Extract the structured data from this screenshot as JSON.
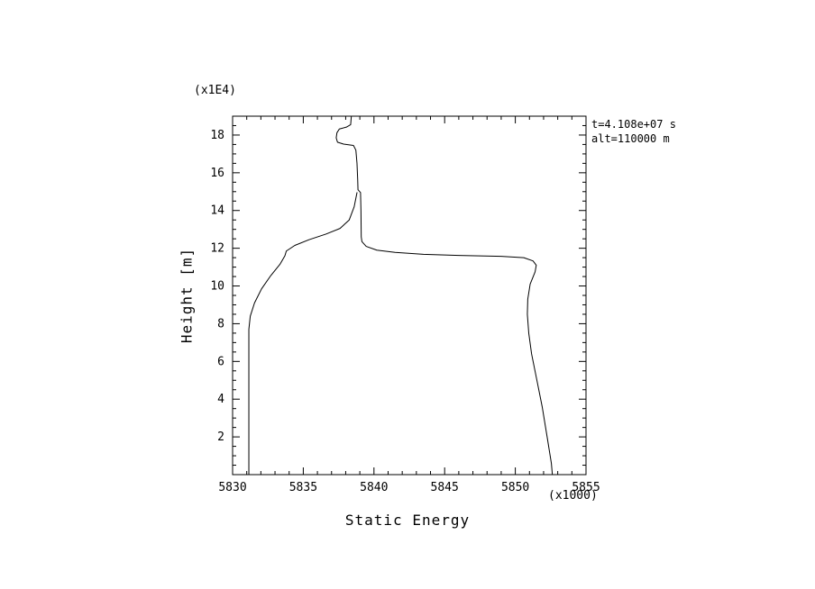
{
  "figure": {
    "bg": "#ffffff",
    "fg": "#000000"
  },
  "chart_data": {
    "type": "line",
    "title": "",
    "xlabel": "Static Energy",
    "ylabel": "Height [m]",
    "x_scale_note": "(x1000)",
    "y_scale_note": "(x1E4)",
    "xlim": [
      5830,
      5855
    ],
    "ylim": [
      0,
      19.0
    ],
    "x_major_ticks": [
      5830,
      5835,
      5840,
      5845,
      5850,
      5855
    ],
    "x_minor_step": 1,
    "y_major_ticks": [
      2,
      4,
      6,
      8,
      10,
      12,
      14,
      16,
      18
    ],
    "y_minor_step": 0.5,
    "grid": false,
    "legend": "none",
    "color": "#000000",
    "annotations": {
      "time": "t=4.108e+07 s",
      "alt": "alt=110000 m"
    },
    "series": [
      {
        "name": "static-energy-profile-main",
        "color": "#000000",
        "points": [
          [
            5838.4,
            19.0
          ],
          [
            5838.35,
            18.55
          ],
          [
            5838.05,
            18.42
          ],
          [
            5837.55,
            18.32
          ],
          [
            5837.38,
            18.12
          ],
          [
            5837.33,
            17.85
          ],
          [
            5837.42,
            17.62
          ],
          [
            5837.85,
            17.52
          ],
          [
            5838.55,
            17.45
          ],
          [
            5838.72,
            17.2
          ],
          [
            5838.8,
            16.5
          ],
          [
            5838.85,
            15.6
          ],
          [
            5838.87,
            15.1
          ],
          [
            5839.05,
            14.95
          ],
          [
            5839.08,
            14.0
          ],
          [
            5839.1,
            12.6
          ],
          [
            5839.15,
            12.35
          ],
          [
            5839.45,
            12.1
          ],
          [
            5840.2,
            11.9
          ],
          [
            5841.5,
            11.78
          ],
          [
            5843.5,
            11.68
          ],
          [
            5846.0,
            11.62
          ],
          [
            5849.0,
            11.57
          ],
          [
            5850.6,
            11.5
          ],
          [
            5851.25,
            11.33
          ],
          [
            5851.48,
            11.1
          ],
          [
            5851.4,
            10.75
          ],
          [
            5851.05,
            10.1
          ],
          [
            5850.88,
            9.3
          ],
          [
            5850.85,
            8.5
          ],
          [
            5850.95,
            7.5
          ],
          [
            5851.15,
            6.4
          ],
          [
            5851.5,
            5.1
          ],
          [
            5851.9,
            3.6
          ],
          [
            5852.25,
            2.0
          ],
          [
            5852.55,
            0.6
          ],
          [
            5852.62,
            0.0
          ]
        ]
      },
      {
        "name": "static-energy-profile-lower-branch",
        "color": "#000000",
        "points": [
          [
            5831.15,
            0.0
          ],
          [
            5831.15,
            7.7
          ],
          [
            5831.25,
            8.4
          ],
          [
            5831.55,
            9.1
          ],
          [
            5832.05,
            9.85
          ],
          [
            5832.7,
            10.55
          ],
          [
            5833.35,
            11.15
          ],
          [
            5833.7,
            11.6
          ],
          [
            5833.8,
            11.85
          ],
          [
            5834.4,
            12.15
          ],
          [
            5835.4,
            12.45
          ],
          [
            5836.6,
            12.75
          ],
          [
            5837.6,
            13.05
          ],
          [
            5838.25,
            13.5
          ],
          [
            5838.6,
            14.2
          ],
          [
            5838.8,
            14.95
          ]
        ]
      }
    ]
  }
}
